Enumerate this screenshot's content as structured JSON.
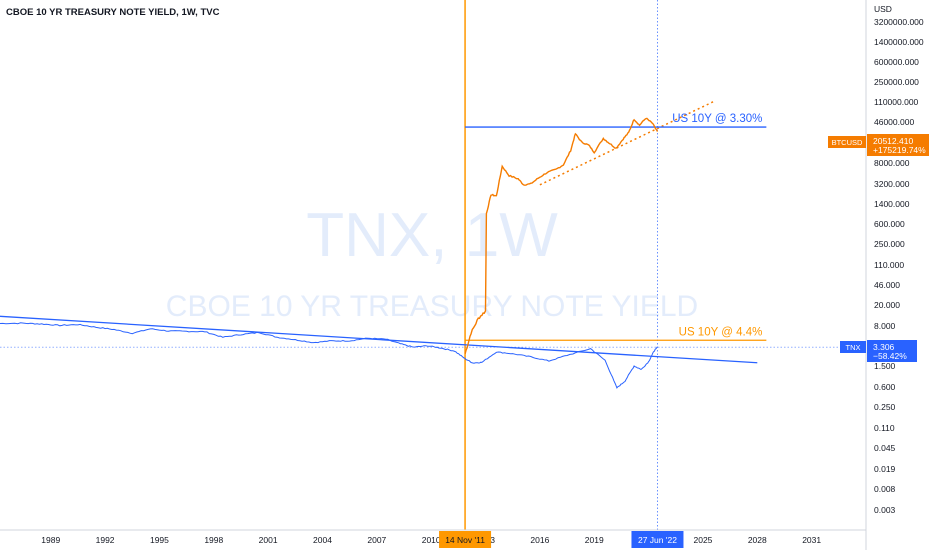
{
  "header": {
    "title": "CBOE 10 YR TREASURY NOTE YIELD, 1W, TVC"
  },
  "watermark": {
    "line1": "TNX, 1W",
    "line2": "CBOE 10 YR TREASURY NOTE YIELD"
  },
  "colors": {
    "btc": "#f57c00",
    "tnx": "#2962ff",
    "vline": "#ff9800",
    "axis_text": "#131722",
    "watermark": "#e3ecfb"
  },
  "chart_data": {
    "type": "line",
    "title": "CBOE 10 YR TREASURY NOTE YIELD, 1W, TVC",
    "yscale": "log",
    "yaxis_unit": "USD",
    "y_tick_labels": [
      "3200000.000",
      "1400000.000",
      "600000.000",
      "250000.000",
      "110000.000",
      "46000.000",
      "8000.000",
      "3200.000",
      "1400.000",
      "600.000",
      "250.000",
      "110.000",
      "46.000",
      "20.000",
      "8.000",
      "1.500",
      "0.600",
      "0.250",
      "0.110",
      "0.045",
      "0.019",
      "0.008",
      "0.003"
    ],
    "x_tick_labels": [
      "1989",
      "1992",
      "1995",
      "1998",
      "2001",
      "2004",
      "2007",
      "2010",
      "2013",
      "2016",
      "2019",
      "2022",
      "2025",
      "2028",
      "2031"
    ],
    "xlim": [
      1986.2,
      2034
    ],
    "ylim": [
      0.0015,
      10000000
    ],
    "series": [
      {
        "name": "TNX",
        "x": [
          1986.2,
          1987.5,
          1988.5,
          1989.5,
          1990.5,
          1991.5,
          1992.5,
          1993.5,
          1994.5,
          1995.5,
          1996.5,
          1997.5,
          1998.5,
          1999.5,
          2000.5,
          2001.5,
          2002.5,
          2003.5,
          2004.5,
          2005.5,
          2006.5,
          2007.5,
          2008.3,
          2009,
          2009.8,
          2010.5,
          2011.3,
          2011.87,
          2012.3,
          2012.8,
          2013.6,
          2014.5,
          2015.5,
          2016.5,
          2017.5,
          2018.8,
          2019.6,
          2020.25,
          2020.7,
          2021.2,
          2021.6,
          2022.0,
          2022.3,
          2022.49
        ],
        "y": [
          8.9,
          9.0,
          8.7,
          8.2,
          8.5,
          7.6,
          6.9,
          5.9,
          7.1,
          6.5,
          6.4,
          6.3,
          5.0,
          5.6,
          6.1,
          5.0,
          4.5,
          4.0,
          4.3,
          4.3,
          4.8,
          4.6,
          3.8,
          3.3,
          3.5,
          3.2,
          2.8,
          2.03,
          1.7,
          1.75,
          2.7,
          2.5,
          2.2,
          1.85,
          2.35,
          3.1,
          1.9,
          0.6,
          0.8,
          1.5,
          1.3,
          1.8,
          2.8,
          3.306
        ],
        "last_value": "3.306",
        "change": "−58.42%"
      },
      {
        "name": "BTCUSD",
        "x": [
          2011.87,
          2012.2,
          2012.6,
          2013.0,
          2013.3,
          2013.6,
          2013.92,
          2014.3,
          2014.8,
          2015.1,
          2015.5,
          2015.9,
          2016.4,
          2016.9,
          2017.3,
          2017.7,
          2017.96,
          2018.3,
          2018.7,
          2019.0,
          2019.5,
          2019.8,
          2020.2,
          2020.6,
          2020.9,
          2021.2,
          2021.5,
          2021.85,
          2022.2,
          2022.49
        ],
        "y": [
          2.5,
          6,
          11,
          15,
          100,
          90,
          1100,
          500,
          380,
          230,
          250,
          400,
          650,
          850,
          1250,
          4200,
          17000,
          8500,
          6500,
          3600,
          11500,
          8000,
          5000,
          11000,
          19000,
          58000,
          35000,
          64000,
          42000,
          20512.41
        ],
        "last_value": "20512.410",
        "change": "+175219.74%"
      }
    ],
    "annotations": [
      {
        "text": "US 10Y @ 3.30%",
        "type": "hline",
        "y": 30000,
        "x_from": 2011.87,
        "x_to": 2028.5
      },
      {
        "text": "US 10Y @ 4.4%",
        "type": "hline",
        "y": 4.4,
        "x_from": 2011.87,
        "x_to": 2028.5
      }
    ],
    "trendlines": [
      {
        "series": "TNX",
        "x": [
          1986.2,
          2028.0
        ],
        "y": [
          12.0,
          1.72
        ]
      },
      {
        "series": "BTCUSD",
        "x": [
          2016.0,
          2025.6
        ],
        "y": [
          230,
          260000
        ],
        "dotted": true
      }
    ],
    "markers": [
      {
        "label": "14 Nov '11",
        "x": 2011.87
      },
      {
        "label": "27 Jun '22",
        "x": 2022.49
      }
    ]
  }
}
